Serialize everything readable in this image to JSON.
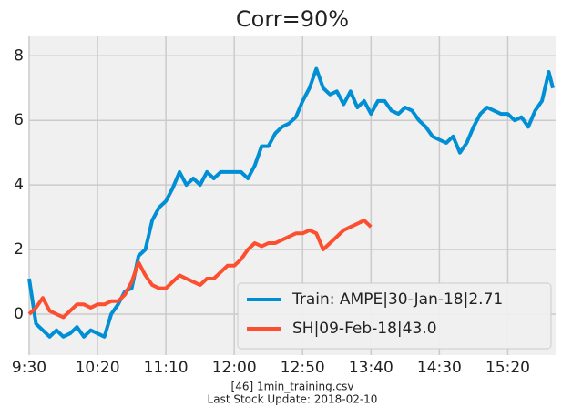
{
  "chart_data": {
    "type": "line",
    "title": "Corr=90%",
    "x": [
      0,
      5,
      10,
      15,
      20,
      25,
      30,
      35,
      40,
      45,
      50,
      55,
      60,
      65,
      70,
      75,
      80,
      85,
      90,
      95,
      100,
      105,
      110,
      115,
      120,
      125,
      130,
      135,
      140,
      145,
      150,
      155,
      160,
      165,
      170,
      175,
      180,
      185,
      190,
      195,
      200,
      205,
      210,
      215,
      220,
      225,
      230,
      235,
      240,
      245,
      250,
      255,
      260,
      265,
      270,
      275,
      280,
      285,
      290,
      295,
      300,
      305,
      310,
      315,
      320,
      325,
      330,
      335,
      340,
      345,
      350,
      355,
      360,
      365,
      370,
      375,
      380,
      383
    ],
    "series": [
      {
        "name": "Train: AMPE|30-Jan-18|2.71",
        "color": "#008fd5",
        "values": [
          1.1,
          -0.3,
          -0.5,
          -0.7,
          -0.5,
          -0.7,
          -0.6,
          -0.4,
          -0.7,
          -0.5,
          -0.6,
          -0.7,
          0.0,
          0.3,
          0.7,
          0.8,
          1.8,
          2.0,
          2.9,
          3.3,
          3.5,
          3.9,
          4.4,
          4.0,
          4.2,
          4.0,
          4.4,
          4.2,
          4.4,
          4.4,
          4.4,
          4.4,
          4.2,
          4.6,
          5.2,
          5.2,
          5.6,
          5.8,
          5.9,
          6.1,
          6.6,
          7.0,
          7.6,
          7.0,
          6.8,
          6.9,
          6.5,
          6.9,
          6.4,
          6.6,
          6.2,
          6.6,
          6.6,
          6.3,
          6.2,
          6.4,
          6.3,
          6.0,
          5.8,
          5.5,
          5.4,
          5.3,
          5.5,
          5.0,
          5.3,
          5.8,
          6.2,
          6.4,
          6.3,
          6.2,
          6.2,
          6.0,
          6.1,
          5.8,
          6.3,
          6.6,
          7.5,
          7.0
        ]
      },
      {
        "name": "SH|09-Feb-18|43.0",
        "color": "#fc4f30",
        "values": [
          0.0,
          0.2,
          0.5,
          0.1,
          0.0,
          -0.1,
          0.1,
          0.3,
          0.3,
          0.2,
          0.3,
          0.3,
          0.4,
          0.4,
          0.6,
          1.0,
          1.6,
          1.2,
          0.9,
          0.8,
          0.8,
          1.0,
          1.2,
          1.1,
          1.0,
          0.9,
          1.1,
          1.1,
          1.3,
          1.5,
          1.5,
          1.7,
          2.0,
          2.2,
          2.1,
          2.2,
          2.2,
          2.3,
          2.4,
          2.5,
          2.5,
          2.6,
          2.5,
          2.0,
          2.2,
          2.4,
          2.6,
          2.7,
          2.8,
          2.9,
          2.7,
          null,
          null,
          null,
          null,
          null,
          null,
          null,
          null,
          null,
          null,
          null,
          null,
          null,
          null,
          null,
          null,
          null,
          null,
          null,
          null,
          null,
          null,
          null,
          null,
          null,
          null,
          null
        ]
      }
    ],
    "xlim": [
      0,
      385
    ],
    "xticks": [
      {
        "value": 0,
        "label": "9:30"
      },
      {
        "value": 50,
        "label": "10:20"
      },
      {
        "value": 100,
        "label": "11:10"
      },
      {
        "value": 150,
        "label": "12:00"
      },
      {
        "value": 200,
        "label": "12:50"
      },
      {
        "value": 250,
        "label": "13:40"
      },
      {
        "value": 300,
        "label": "14:30"
      },
      {
        "value": 350,
        "label": "15:20"
      }
    ],
    "ylim": [
      -1.27,
      8.6
    ],
    "yticks": [
      0,
      2,
      4,
      6,
      8
    ],
    "grid": true,
    "legend": "lower right",
    "footer": [
      "[46] 1min_training.csv",
      "Last Stock Update: 2018-02-10"
    ]
  }
}
